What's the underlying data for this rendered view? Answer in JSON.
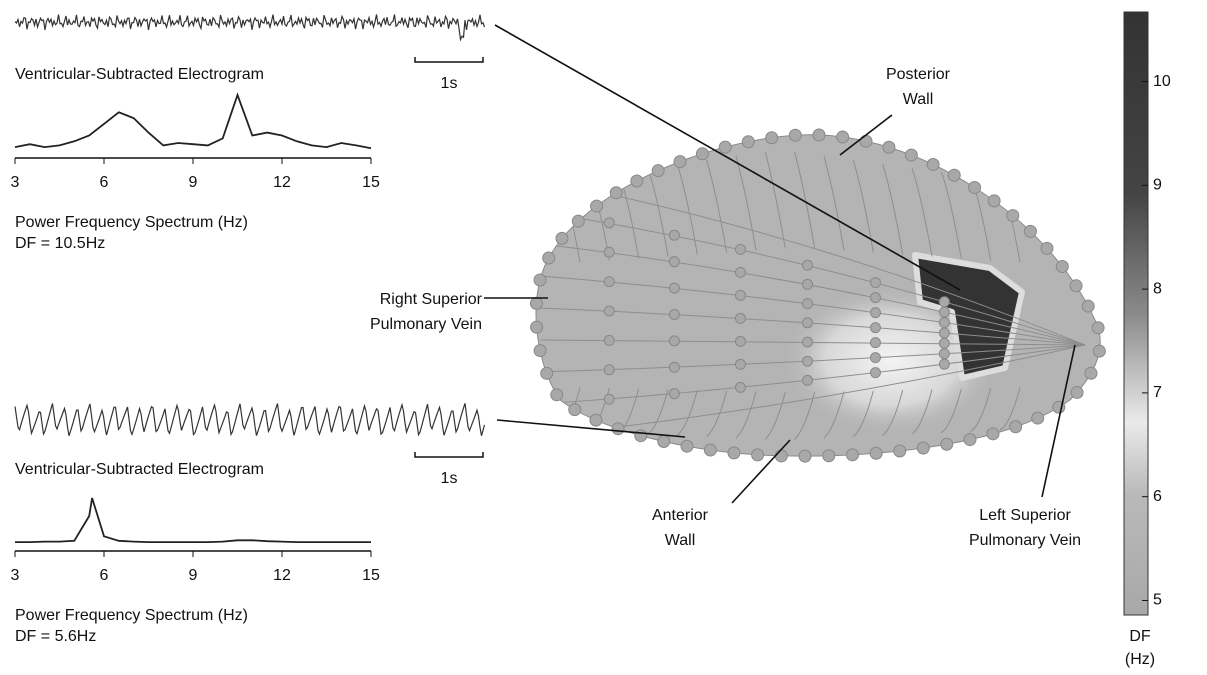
{
  "chart_data": [
    {
      "type": "line",
      "electrogram_label": "Ventricular-Subtracted Electrogram",
      "scale_label": "1s",
      "x_label": "Power Frequency Spectrum (Hz)",
      "annotation": "DF = 10.5Hz",
      "color": "#222222",
      "x": [
        3,
        3.5,
        4,
        4.5,
        5,
        5.5,
        6,
        6.5,
        7,
        7.5,
        8,
        8.5,
        9,
        9.5,
        10,
        10.5,
        11,
        11.5,
        12,
        12.5,
        13,
        13.5,
        14,
        14.5,
        15
      ],
      "values": [
        0.05,
        0.1,
        0.05,
        0.08,
        0.15,
        0.25,
        0.45,
        0.65,
        0.55,
        0.3,
        0.08,
        0.12,
        0.1,
        0.08,
        0.2,
        0.95,
        0.25,
        0.3,
        0.25,
        0.15,
        0.08,
        0.05,
        0.12,
        0.08,
        0.03
      ],
      "xlim": [
        3,
        15
      ],
      "xticks": [
        3,
        6,
        9,
        12,
        15
      ],
      "ylim": [
        0,
        1
      ]
    },
    {
      "type": "line",
      "electrogram_label": "Ventricular-Subtracted Electrogram",
      "scale_label": "1s",
      "x_label": "Power Frequency Spectrum (Hz)",
      "annotation": "DF = 5.6Hz",
      "color": "#222222",
      "x": [
        3,
        3.5,
        4,
        4.5,
        5,
        5.5,
        5.6,
        6,
        6.5,
        7,
        7.5,
        8,
        8.5,
        9,
        9.5,
        10,
        10.5,
        11,
        11.5,
        12,
        12.5,
        13,
        13.5,
        14,
        14.5,
        15
      ],
      "values": [
        0.02,
        0.02,
        0.03,
        0.03,
        0.05,
        0.6,
        1.0,
        0.15,
        0.05,
        0.03,
        0.02,
        0.02,
        0.02,
        0.02,
        0.02,
        0.03,
        0.06,
        0.06,
        0.04,
        0.03,
        0.02,
        0.02,
        0.02,
        0.02,
        0.02,
        0.02
      ],
      "xlim": [
        3,
        15
      ],
      "xticks": [
        3,
        6,
        9,
        12,
        15
      ],
      "ylim": [
        0,
        1
      ]
    },
    {
      "type": "colorbar",
      "label": [
        "DF",
        "(Hz)"
      ],
      "ylim": [
        4.86,
        10.67
      ],
      "yticks": [
        5,
        6,
        7,
        8,
        9,
        10
      ]
    }
  ],
  "annotations": [
    {
      "lines": [
        "Posterior",
        "Wall"
      ]
    },
    {
      "lines": [
        "Right Superior",
        "Pulmonary Vein"
      ]
    },
    {
      "lines": [
        "Anterior",
        "Wall"
      ]
    },
    {
      "lines": [
        "Left Superior",
        "Pulmonary Vein"
      ]
    }
  ]
}
